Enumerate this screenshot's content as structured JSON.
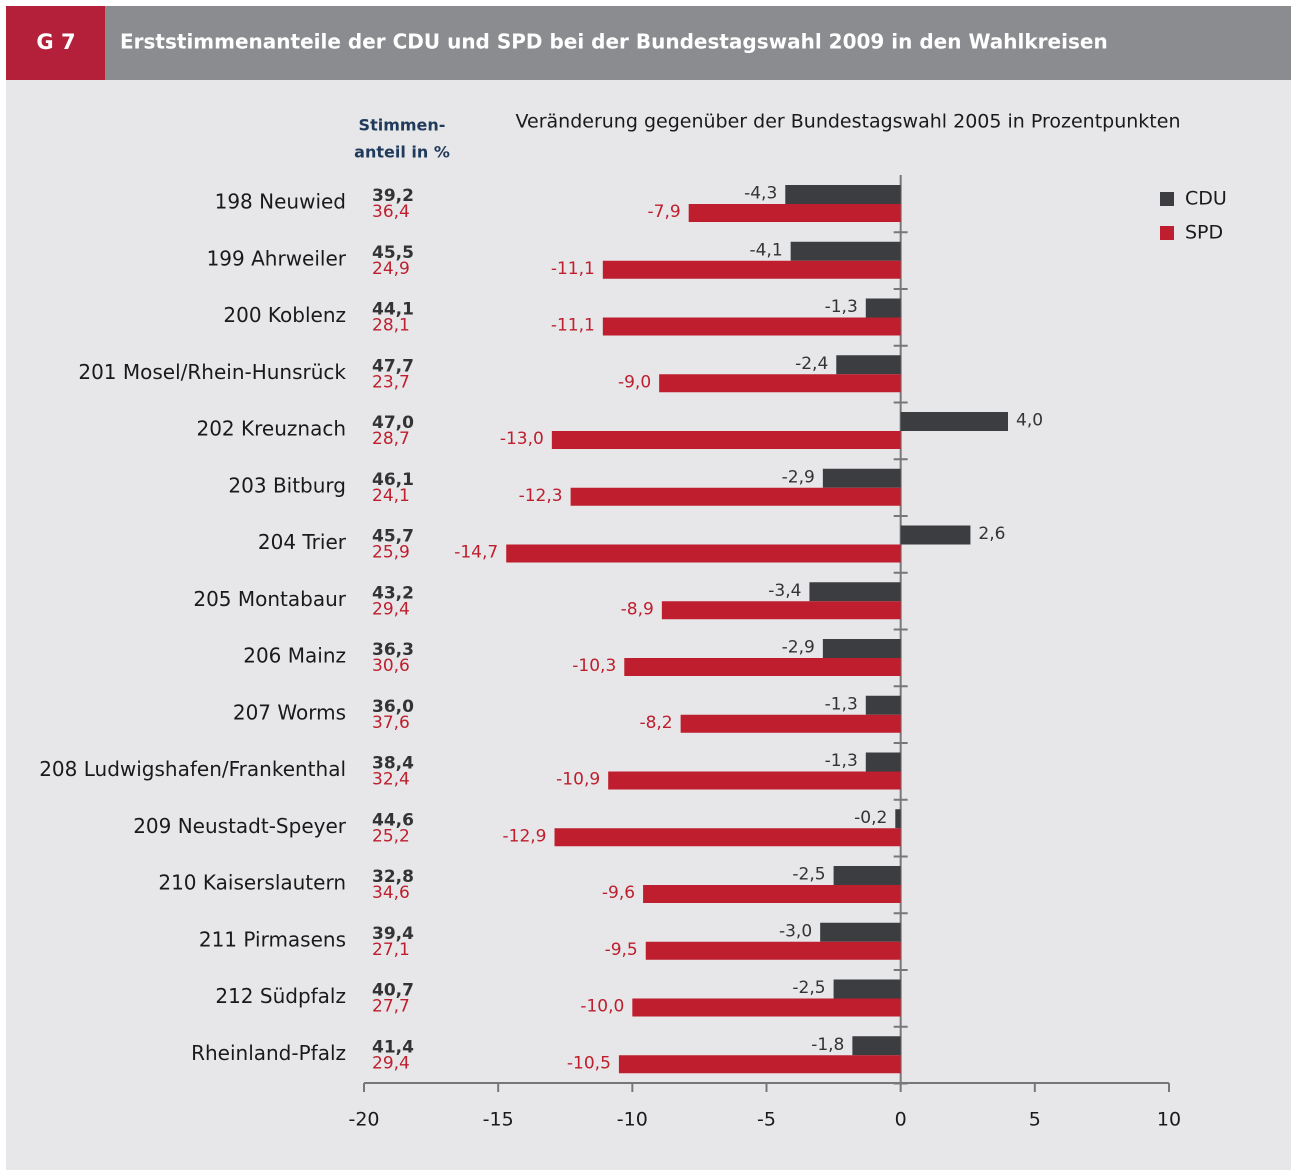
{
  "chart_data": {
    "type": "bar",
    "badge": "G 7",
    "title": "Erststimmenanteile der CDU und SPD bei der Bundestagswahl 2009 in den Wahlkreisen",
    "subtitle": "Veränderung gegenüber der Bundestagswahl 2005 in Prozentpunkten",
    "share_heading": [
      "Stimmen-",
      "anteil in %"
    ],
    "categories": [
      "198 Neuwied",
      "199 Ahrweiler",
      "200 Koblenz",
      "201 Mosel/Rhein-Hunsrück",
      "202 Kreuznach",
      "203 Bitburg",
      "204 Trier",
      "205 Montabaur",
      "206 Mainz",
      "207 Worms",
      "208 Ludwigshafen/Frankenthal",
      "209 Neustadt-Speyer",
      "210 Kaiserslautern",
      "211 Pirmasens",
      "212 Südpfalz",
      "Rheinland-Pfalz"
    ],
    "share_cdu": [
      "39,2",
      "45,5",
      "44,1",
      "47,7",
      "47,0",
      "46,1",
      "45,7",
      "43,2",
      "36,3",
      "36,0",
      "38,4",
      "44,6",
      "32,8",
      "39,4",
      "40,7",
      "41,4"
    ],
    "share_spd": [
      "36,4",
      "24,9",
      "28,1",
      "23,7",
      "28,7",
      "24,1",
      "25,9",
      "29,4",
      "30,6",
      "37,6",
      "32,4",
      "25,2",
      "34,6",
      "27,1",
      "27,7",
      "29,4"
    ],
    "series": [
      {
        "name": "CDU",
        "color": "#3b3d41",
        "values": [
          -4.3,
          -4.1,
          -1.3,
          -2.4,
          4.0,
          -2.9,
          2.6,
          -3.4,
          -2.9,
          -1.3,
          -1.3,
          -0.2,
          -2.5,
          -3.0,
          -2.5,
          -1.8
        ],
        "value_labels": [
          "-4,3",
          "-4,1",
          "-1,3",
          "-2,4",
          "4,0",
          "-2,9",
          "2,6",
          "-3,4",
          "-2,9",
          "-1,3",
          "-1,3",
          "-0,2",
          "-2,5",
          "-3,0",
          "-2,5",
          "-1,8"
        ]
      },
      {
        "name": "SPD",
        "color": "#be1e2d",
        "values": [
          -7.9,
          -11.1,
          -11.1,
          -9.0,
          -13.0,
          -12.3,
          -14.7,
          -8.9,
          -10.3,
          -8.2,
          -10.9,
          -12.9,
          -9.6,
          -9.5,
          -10.0,
          -10.5
        ],
        "value_labels": [
          "-7,9",
          "-11,1",
          "-11,1",
          "-9,0",
          "-13,0",
          "-12,3",
          "-14,7",
          "-8,9",
          "-10,3",
          "-8,2",
          "-10,9",
          "-12,9",
          "-9,6",
          "-9,5",
          "-10,0",
          "-10,5"
        ]
      }
    ],
    "xlim": [
      -20,
      10
    ],
    "xticks": [
      -20,
      -15,
      -10,
      -5,
      0,
      5,
      10
    ],
    "legend": "top-right"
  }
}
